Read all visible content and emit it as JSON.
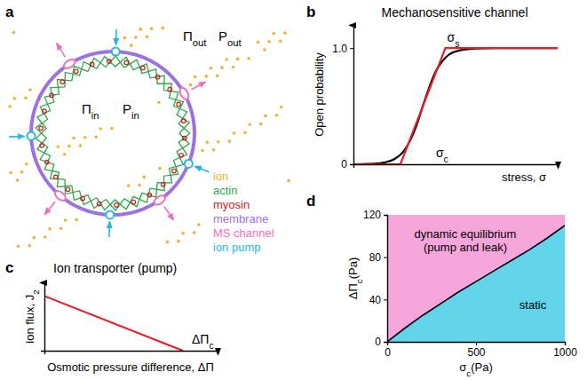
{
  "diagram": {
    "panel": "a",
    "outside_labels": [
      "Πout",
      "Pout"
    ],
    "inside_labels": [
      "Πin",
      "Pin"
    ],
    "legend": [
      {
        "label": "ion",
        "color": "#f0b030"
      },
      {
        "label": "actin",
        "color": "#2aa84a"
      },
      {
        "label": "myosin",
        "color": "#c81e1e"
      },
      {
        "label": "membrane",
        "color": "#9b72e6"
      },
      {
        "label": "MS channel",
        "color": "#f06fc0"
      },
      {
        "label": "ion pump",
        "color": "#27b7e0"
      }
    ]
  },
  "chart_data": [
    {
      "panel": "b",
      "type": "line",
      "title": "Mechanosensitive channel",
      "xlabel": "stress, σ",
      "ylabel": "Open probability",
      "xlim": [
        0,
        10
      ],
      "ylim": [
        0,
        1.2
      ],
      "yticks": [
        0,
        {
          "value": 1,
          "label": "1.0"
        }
      ],
      "tick_labels": "y",
      "series": [
        {
          "color": "#000000",
          "x": [
            0,
            0.5,
            1,
            1.5,
            2,
            2.5,
            3,
            3.5,
            4,
            4.5,
            5,
            6,
            7,
            8,
            9,
            10
          ],
          "values": [
            0,
            0.002,
            0.005,
            0.015,
            0.044,
            0.121,
            0.293,
            0.555,
            0.789,
            0.918,
            0.971,
            0.997,
            1,
            1,
            1,
            1
          ]
        },
        {
          "color": "#e8202a",
          "x": [
            0,
            2.3,
            4.5,
            10
          ],
          "values": [
            0,
            0,
            1,
            1
          ]
        }
      ],
      "annotations": [
        "σc",
        "σs"
      ]
    },
    {
      "panel": "c",
      "type": "line",
      "title": "Ion transporter (pump)",
      "xlabel": "Osmotic pressure difference, ΔΠ",
      "ylabel": "ion flux, J2",
      "xlim": [
        0,
        10
      ],
      "ylim": [
        0,
        10
      ],
      "tick_labels": false,
      "series": [
        {
          "color": "#e8202a",
          "x": [
            0,
            8
          ],
          "values": [
            8,
            0
          ]
        }
      ],
      "annotations": [
        "ΔΠc"
      ]
    },
    {
      "panel": "d",
      "type": "area",
      "xlabel": "σc(Pa)",
      "ylabel": "ΔΠc(Pa)",
      "xlim": [
        0,
        1000
      ],
      "ylim": [
        0,
        120
      ],
      "xticks": [
        0,
        500,
        1000
      ],
      "yticks": [
        0,
        40,
        80,
        120
      ],
      "color": "#000000",
      "x": [
        0,
        100,
        200,
        300,
        400,
        500,
        600,
        700,
        800,
        900,
        1000
      ],
      "values": [
        0,
        13,
        25,
        36,
        47,
        57,
        67,
        77,
        87,
        98,
        110
      ],
      "regions": [
        {
          "label": [
            "dynamic equilibrium",
            "(pump and leak)"
          ],
          "color": "#f7a6dc"
        },
        {
          "label": [
            "static"
          ],
          "color": "#62d4ea"
        }
      ]
    }
  ]
}
